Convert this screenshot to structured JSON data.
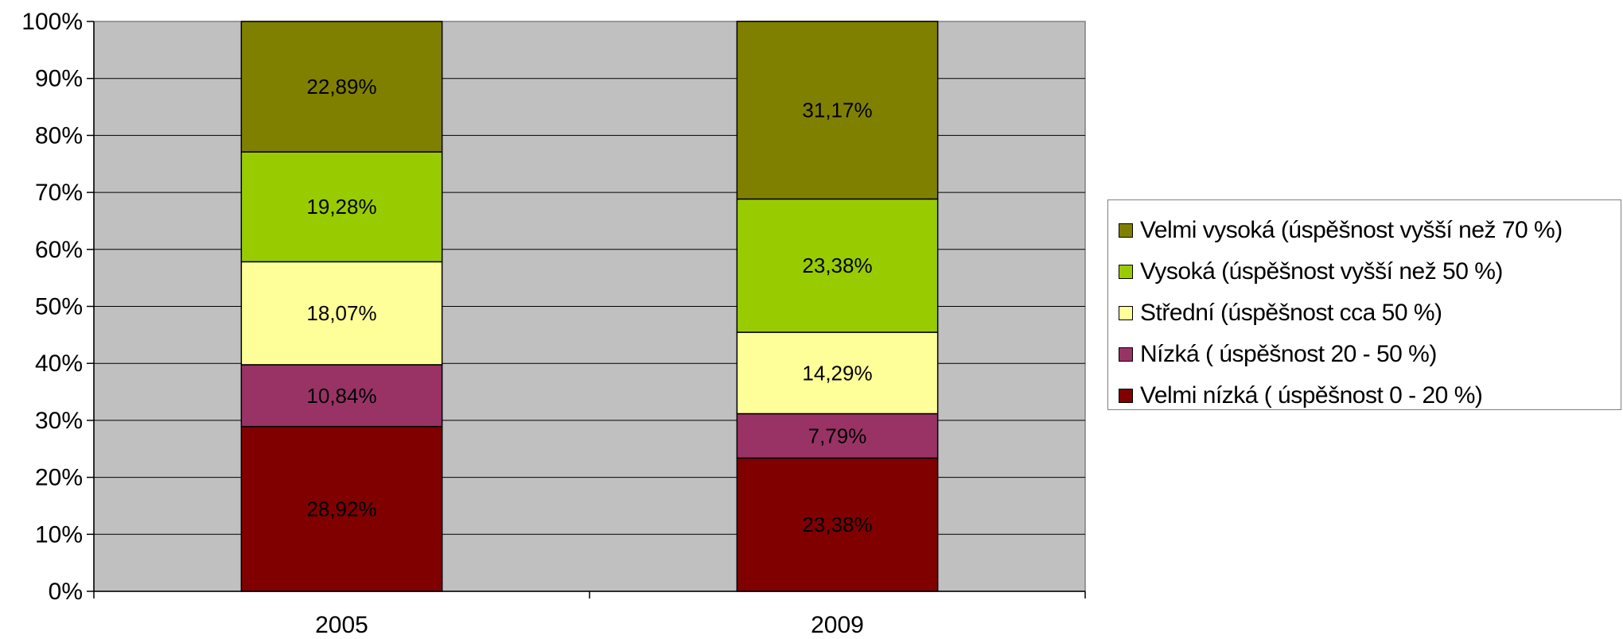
{
  "chart_data": {
    "type": "bar",
    "stacked": true,
    "percent": true,
    "categories": [
      "2005",
      "2009"
    ],
    "series": [
      {
        "name": "Velmi nízká ( úspěšnost 0 - 20 %)",
        "color": "#800000",
        "values": [
          28.92,
          23.38
        ],
        "labels": [
          "28,92%",
          "23,38%"
        ]
      },
      {
        "name": "Nízká ( úspěšnost 20 - 50 %)",
        "color": "#993366",
        "values": [
          10.84,
          7.79
        ],
        "labels": [
          "10,84%",
          "7,79%"
        ]
      },
      {
        "name": "Střední (úspěšnost cca 50 %)",
        "color": "#FFFF99",
        "values": [
          18.07,
          14.29
        ],
        "labels": [
          "18,07%",
          "14,29%"
        ]
      },
      {
        "name": "Vysoká (úspěšnost vyšší než 50 %)",
        "color": "#99CC00",
        "values": [
          19.28,
          23.38
        ],
        "labels": [
          "19,28%",
          "23,38%"
        ]
      },
      {
        "name": "Velmi vysoká (úspěšnost vyšší než 70 %)",
        "color": "#808000",
        "values": [
          22.89,
          31.17
        ],
        "labels": [
          "22,89%",
          "31,17%"
        ]
      }
    ],
    "yticks": [
      "0%",
      "10%",
      "20%",
      "30%",
      "40%",
      "50%",
      "60%",
      "70%",
      "80%",
      "90%",
      "100%"
    ],
    "ylim": [
      0,
      100
    ],
    "grid": true,
    "plot_background": "#C0C0C0",
    "legend_position": "right",
    "legend_order": [
      4,
      3,
      2,
      1,
      0
    ]
  }
}
